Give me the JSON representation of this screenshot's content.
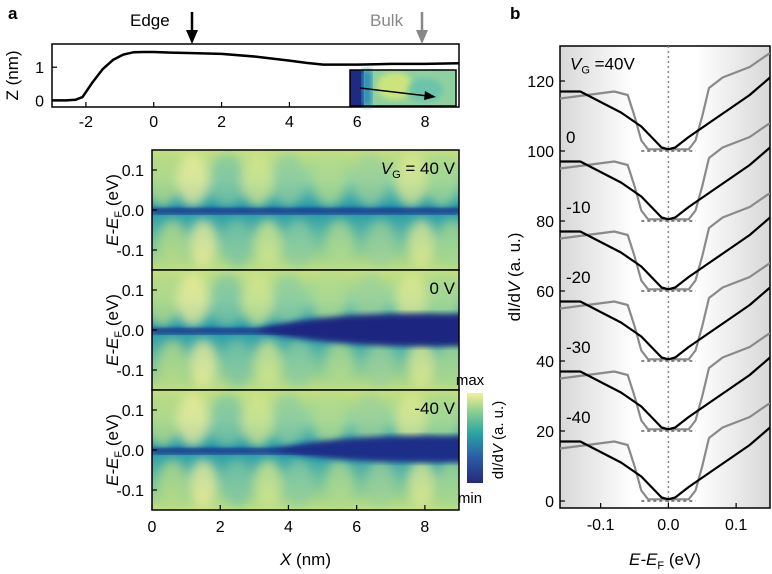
{
  "panels": {
    "a": "a",
    "b": "b"
  },
  "markers": {
    "edge": "Edge",
    "bulk": "Bulk"
  },
  "colorbar": {
    "max": "max",
    "min": "min",
    "label_pre": "dI/d",
    "label_var": "V",
    "label_post": " (a. u.)"
  },
  "chart_data": [
    {
      "id": "height-profile",
      "type": "line",
      "ylabel": "Z (nm)",
      "xlim": [
        -3,
        9
      ],
      "ylim": [
        -0.2,
        1.7
      ],
      "xticks": [
        -2,
        0,
        2,
        4,
        6,
        8
      ],
      "yticks": [
        0,
        1
      ],
      "series": [
        {
          "x": [
            -3,
            -2.6,
            -2.3,
            -2.1,
            -2.0,
            -1.8,
            -1.5,
            -1.2,
            -0.9,
            -0.6,
            -0.3,
            0,
            0.5,
            1,
            2,
            3,
            4,
            4.5,
            5,
            6,
            7,
            8,
            9
          ],
          "y": [
            0.0,
            0.0,
            0.02,
            0.1,
            0.25,
            0.55,
            0.95,
            1.22,
            1.38,
            1.45,
            1.46,
            1.46,
            1.44,
            1.43,
            1.4,
            1.32,
            1.2,
            1.13,
            1.08,
            1.08,
            1.1,
            1.1,
            1.12
          ]
        }
      ],
      "markers": [
        {
          "name": "Edge",
          "x": 1.0
        },
        {
          "name": "Bulk",
          "x": 8.0
        }
      ]
    },
    {
      "id": "didv-maps",
      "type": "heatmap",
      "xlabel": "X (nm)",
      "ylabel": "E-EF (eV)",
      "xlim": [
        0,
        9
      ],
      "ylim": [
        -0.15,
        0.15
      ],
      "xticks": [
        0,
        2,
        4,
        6,
        8
      ],
      "yticks": [
        0.1,
        0.0,
        -0.1
      ],
      "yticklabels": [
        "0.1",
        "0.0",
        "-0.1"
      ],
      "colorbar": [
        "min",
        "max"
      ],
      "maps": [
        {
          "label": "V",
          "sub": "G",
          "value": " = 40 V"
        },
        {
          "label": "",
          "sub": "",
          "value": "0 V"
        },
        {
          "label": "",
          "sub": "",
          "value": "-40 V"
        }
      ]
    },
    {
      "id": "spectra",
      "type": "line",
      "xlabel": "E-EF (eV)",
      "ylabel": "dI/dV (a. u.)",
      "xlim": [
        -0.16,
        0.15
      ],
      "ylim": [
        -2,
        130
      ],
      "xticks": [
        -0.1,
        0.0,
        0.1
      ],
      "yticks": [
        0,
        20,
        40,
        60,
        80,
        100,
        120
      ],
      "gate_labels": [
        {
          "prefix": "V",
          "sub": "G",
          "text": " =40V"
        },
        {
          "text": "0"
        },
        {
          "text": "-10"
        },
        {
          "text": "-20"
        },
        {
          "text": "-30"
        },
        {
          "text": "-40"
        }
      ],
      "offsets": [
        100,
        80,
        60,
        40,
        20,
        0
      ],
      "edge_series": {
        "x": [
          -0.16,
          -0.13,
          -0.1,
          -0.07,
          -0.04,
          -0.02,
          -0.01,
          0.0,
          0.01,
          0.03,
          0.06,
          0.09,
          0.12,
          0.15
        ],
        "y": [
          17,
          17,
          14,
          11,
          7,
          3,
          1,
          0.5,
          1,
          4,
          8,
          12,
          16,
          21
        ]
      },
      "bulk_series": {
        "x": [
          -0.16,
          -0.12,
          -0.08,
          -0.06,
          -0.05,
          -0.04,
          -0.03,
          0.0,
          0.03,
          0.04,
          0.05,
          0.06,
          0.08,
          0.12,
          0.15
        ],
        "y": [
          15,
          16,
          17,
          16,
          10,
          3,
          0.5,
          0.5,
          0.5,
          3,
          10,
          18,
          21,
          24,
          28
        ]
      }
    }
  ]
}
